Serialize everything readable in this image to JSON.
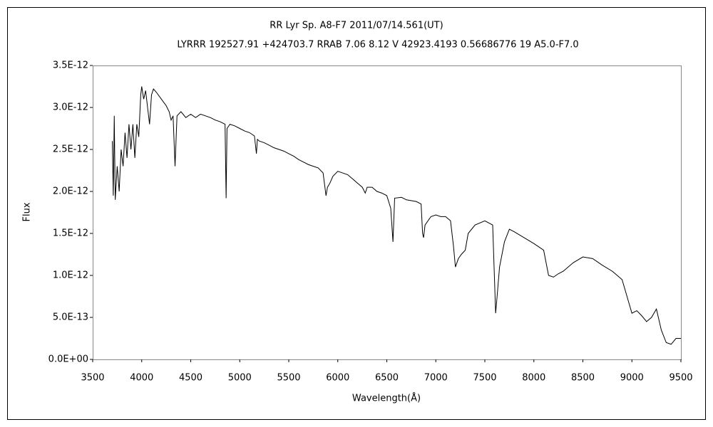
{
  "chart_data": {
    "type": "line",
    "title": "RR Lyr    Sp. A8-F7    2011/07/14.561(UT)",
    "subtitle": "LYRRR 192527.91 +424703.7 RRAB 7.06 8.12 V 42923.4193 0.56686776 19 A5.0-F7.0",
    "x_label": "Wavelength(Å)",
    "y_label": "Flux",
    "xlim": [
      3500,
      9500
    ],
    "ylim": [
      0,
      3.5e-12
    ],
    "xticks": [
      3500,
      4000,
      4500,
      5000,
      5500,
      6000,
      6500,
      7000,
      7500,
      8000,
      8500,
      9000,
      9500
    ],
    "yticks": [
      {
        "value": 0,
        "label": "0.0E+00"
      },
      {
        "value": 5e-13,
        "label": "5.0E-13"
      },
      {
        "value": 1e-12,
        "label": "1.0E-12"
      },
      {
        "value": 1.5e-12,
        "label": "1.5E-12"
      },
      {
        "value": 2e-12,
        "label": "2.0E-12"
      },
      {
        "value": 2.5e-12,
        "label": "2.5E-12"
      },
      {
        "value": 3e-12,
        "label": "3.0E-12"
      },
      {
        "value": 3.5e-12,
        "label": "3.5E-12"
      }
    ],
    "grid": false,
    "color": "#000000",
    "x": [
      3700,
      3710,
      3720,
      3730,
      3750,
      3770,
      3790,
      3810,
      3830,
      3850,
      3870,
      3890,
      3910,
      3930,
      3950,
      3970,
      3990,
      4000,
      4020,
      4040,
      4060,
      4080,
      4100,
      4120,
      4150,
      4200,
      4250,
      4280,
      4300,
      4320,
      4340,
      4360,
      4400,
      4450,
      4500,
      4550,
      4600,
      4650,
      4700,
      4750,
      4800,
      4850,
      4861,
      4870,
      4900,
      4950,
      5000,
      5050,
      5100,
      5150,
      5170,
      5180,
      5200,
      5250,
      5300,
      5350,
      5400,
      5450,
      5500,
      5550,
      5600,
      5650,
      5700,
      5750,
      5800,
      5850,
      5880,
      5895,
      5920,
      5950,
      6000,
      6050,
      6100,
      6150,
      6200,
      6250,
      6280,
      6300,
      6350,
      6400,
      6450,
      6500,
      6540,
      6563,
      6580,
      6650,
      6700,
      6800,
      6850,
      6865,
      6875,
      6890,
      6950,
      7000,
      7050,
      7100,
      7150,
      7180,
      7200,
      7230,
      7260,
      7300,
      7330,
      7400,
      7500,
      7580,
      7600,
      7610,
      7625,
      7650,
      7700,
      7750,
      7800,
      7900,
      8000,
      8100,
      8150,
      8200,
      8250,
      8300,
      8400,
      8500,
      8600,
      8700,
      8800,
      8900,
      8950,
      9000,
      9050,
      9100,
      9150,
      9200,
      9250,
      9300,
      9350,
      9400,
      9450,
      9500
    ],
    "values": [
      2.6e-12,
      1.95e-12,
      2.9e-12,
      1.9e-12,
      2.3e-12,
      2e-12,
      2.5e-12,
      2.3e-12,
      2.7e-12,
      2.4e-12,
      2.8e-12,
      2.5e-12,
      2.8e-12,
      2.4e-12,
      2.8e-12,
      2.65e-12,
      3.15e-12,
      3.25e-12,
      3.1e-12,
      3.2e-12,
      3e-12,
      2.8e-12,
      3.15e-12,
      3.22e-12,
      3.18e-12,
      3.1e-12,
      3.02e-12,
      2.95e-12,
      2.85e-12,
      2.9e-12,
      2.3e-12,
      2.9e-12,
      2.95e-12,
      2.88e-12,
      2.92e-12,
      2.88e-12,
      2.92e-12,
      2.9e-12,
      2.88e-12,
      2.85e-12,
      2.83e-12,
      2.8e-12,
      1.92e-12,
      2.75e-12,
      2.8e-12,
      2.78e-12,
      2.75e-12,
      2.72e-12,
      2.7e-12,
      2.66e-12,
      2.45e-12,
      2.62e-12,
      2.6e-12,
      2.58e-12,
      2.55e-12,
      2.52e-12,
      2.5e-12,
      2.48e-12,
      2.45e-12,
      2.42e-12,
      2.38e-12,
      2.35e-12,
      2.32e-12,
      2.3e-12,
      2.28e-12,
      2.22e-12,
      1.95e-12,
      2.05e-12,
      2.1e-12,
      2.18e-12,
      2.24e-12,
      2.22e-12,
      2.2e-12,
      2.15e-12,
      2.1e-12,
      2.05e-12,
      1.98e-12,
      2.05e-12,
      2.05e-12,
      2e-12,
      1.98e-12,
      1.95e-12,
      1.8e-12,
      1.4e-12,
      1.92e-12,
      1.93e-12,
      1.9e-12,
      1.88e-12,
      1.85e-12,
      1.5e-12,
      1.45e-12,
      1.6e-12,
      1.7e-12,
      1.72e-12,
      1.7e-12,
      1.7e-12,
      1.65e-12,
      1.35e-12,
      1.1e-12,
      1.2e-12,
      1.25e-12,
      1.3e-12,
      1.5e-12,
      1.6e-12,
      1.65e-12,
      1.6e-12,
      9e-13,
      5.5e-13,
      7.5e-13,
      1.1e-12,
      1.4e-12,
      1.55e-12,
      1.52e-12,
      1.45e-12,
      1.38e-12,
      1.3e-12,
      1e-12,
      9.8e-13,
      1.02e-12,
      1.05e-12,
      1.15e-12,
      1.22e-12,
      1.2e-12,
      1.12e-12,
      1.05e-12,
      9.5e-13,
      7.5e-13,
      5.5e-13,
      5.8e-13,
      5.2e-13,
      4.5e-13,
      5e-13,
      6e-13,
      3.5e-13,
      2e-13,
      1.8e-13,
      2.5e-13,
      2.5e-13
    ]
  }
}
